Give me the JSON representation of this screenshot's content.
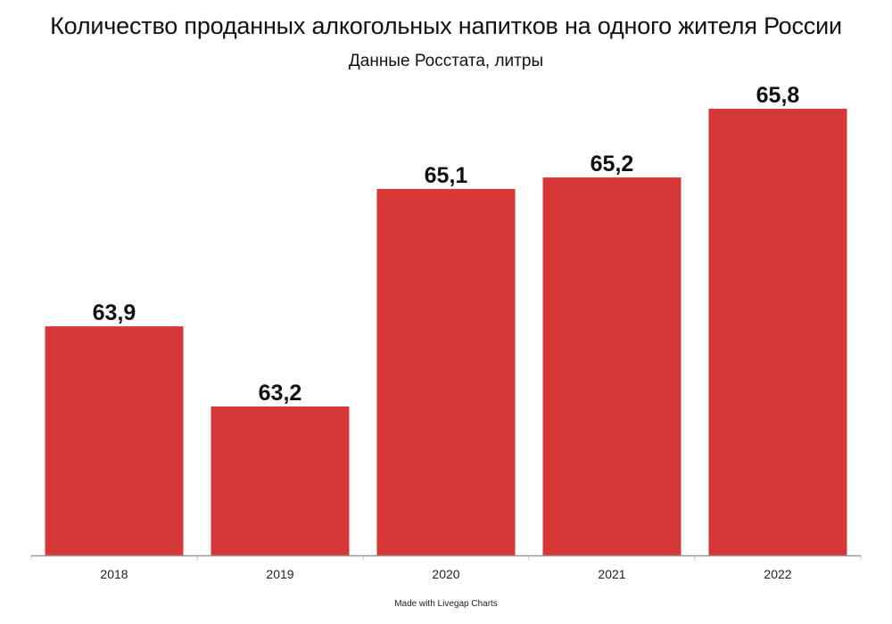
{
  "header": {
    "title": "Количество проданных алкогольных напитков на одного жителя России",
    "subtitle": "Данные Росстата, литры"
  },
  "footer": {
    "credit": "Made with Livegap Charts"
  },
  "colors": {
    "bar": "#d63837",
    "axis": "#999999"
  },
  "chart_data": {
    "type": "bar",
    "title": "Количество проданных алкогольных напитков на одного жителя России",
    "subtitle": "Данные Росстата, литры",
    "categories": [
      "2018",
      "2019",
      "2020",
      "2021",
      "2022"
    ],
    "values": [
      63.9,
      63.2,
      65.1,
      65.2,
      65.8
    ],
    "value_labels": [
      "63,9",
      "63,2",
      "65,1",
      "65,2",
      "65,8"
    ],
    "ylim": [
      61.9,
      65.8
    ],
    "xlabel": "",
    "ylabel": "",
    "grid": false,
    "legend": "none"
  }
}
